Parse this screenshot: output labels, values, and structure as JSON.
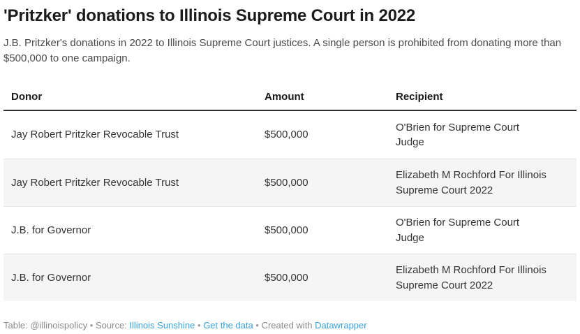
{
  "chart_data": {
    "type": "table",
    "title": "'Pritzker' donations to Illinois Supreme Court in 2022",
    "subtitle": "J.B. Pritzker's donations in 2022 to Illinois Supreme Court justices. A single person is prohibited from donating more than $500,000 to one campaign.",
    "columns": [
      "Donor",
      "Amount",
      "Recipient"
    ],
    "rows": [
      [
        "Jay Robert Pritzker Revocable Trust",
        "$500,000",
        "O'Brien for Supreme Court Judge"
      ],
      [
        "Jay Robert Pritzker Revocable Trust",
        "$500,000",
        "Elizabeth M Rochford For Illinois Supreme Court 2022"
      ],
      [
        "J.B. for Governor",
        "$500,000",
        "O'Brien for Supreme Court Judge"
      ],
      [
        "J.B. for Governor",
        "$500,000",
        "Elizabeth M Rochford For Illinois Supreme Court 2022"
      ]
    ],
    "amount_values_usd": [
      500000,
      500000,
      500000,
      500000
    ],
    "layout_hints": {
      "striped_rows": true,
      "header_rule": true,
      "grid": "horizontal-only"
    }
  },
  "footer": {
    "table_label": "Table:",
    "byline": "@illinoispolicy",
    "bullet": "•",
    "source_label": "Source:",
    "source_link": "Illinois Sunshine",
    "get_data_link": "Get the data",
    "created_with": "Created with",
    "datawrapper_link": "Datawrapper"
  },
  "colors": {
    "title_text": "#1b1b1b",
    "body_text": "#333333",
    "description_text": "#4a4a4a",
    "footer_text": "#8b8b8b",
    "link_blue": "#3aa1db",
    "alt_row_bg": "#f5f5f5",
    "row_divider": "#e6e6e6",
    "header_rule": "#2e2e2e"
  }
}
